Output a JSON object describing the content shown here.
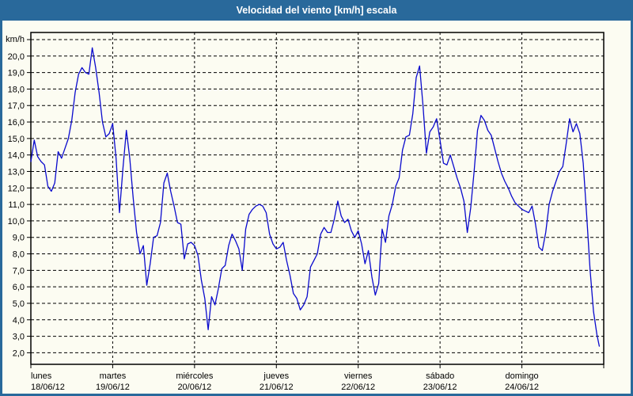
{
  "header": {
    "title": "Velocidad del viento [km/h] escala"
  },
  "colors": {
    "titlebar_bg": "#29699b",
    "titlebar_text": "#ffffff",
    "chart_bg": "#fcfcf2",
    "line": "#0a0acd",
    "grid": "#000000",
    "frame": "#000000",
    "tick_text": "#000000"
  },
  "chart_data": {
    "type": "line",
    "title": "Velocidad del viento [km/h] escala",
    "ylabel": "km/h",
    "y_unit_label": "km/h",
    "ylim": [
      2,
      21
    ],
    "y_tick_step": 1,
    "y_labeled_min": 2,
    "y_labeled_max": 20,
    "decimal_comma": true,
    "grid": "dashed",
    "legend_position": "none",
    "x_days": [
      {
        "name": "lunes",
        "date": "18/06/12"
      },
      {
        "name": "martes",
        "date": "19/06/12"
      },
      {
        "name": "miércoles",
        "date": "20/06/12"
      },
      {
        "name": "jueves",
        "date": "21/06/12"
      },
      {
        "name": "viernes",
        "date": "22/06/12"
      },
      {
        "name": "sábado",
        "date": "23/06/12"
      },
      {
        "name": "domingo",
        "date": "24/06/12"
      }
    ],
    "x_unit": "hours_since_monday_00",
    "series": [
      {
        "name": "Velocidad del viento [km/h]",
        "color": "#0a0acd",
        "points": [
          [
            0,
            13.6
          ],
          [
            1,
            14.9
          ],
          [
            2,
            13.9
          ],
          [
            3,
            13.6
          ],
          [
            4,
            13.4
          ],
          [
            5,
            12.1
          ],
          [
            6,
            11.8
          ],
          [
            7,
            12.3
          ],
          [
            8,
            14.2
          ],
          [
            9,
            13.8
          ],
          [
            10,
            14.4
          ],
          [
            11,
            15.0
          ],
          [
            12,
            16.1
          ],
          [
            13,
            17.8
          ],
          [
            14,
            18.9
          ],
          [
            15,
            19.3
          ],
          [
            16,
            19.0
          ],
          [
            17,
            18.9
          ],
          [
            18,
            20.5
          ],
          [
            19,
            19.3
          ],
          [
            20,
            17.8
          ],
          [
            21,
            16.0
          ],
          [
            22,
            15.1
          ],
          [
            23,
            15.3
          ],
          [
            24,
            15.9
          ],
          [
            25,
            13.8
          ],
          [
            26,
            10.5
          ],
          [
            27,
            13.2
          ],
          [
            28,
            15.5
          ],
          [
            29,
            13.8
          ],
          [
            30,
            11.4
          ],
          [
            31,
            9.3
          ],
          [
            32,
            8.0
          ],
          [
            33,
            8.5
          ],
          [
            34,
            6.1
          ],
          [
            35,
            7.4
          ],
          [
            36,
            9.0
          ],
          [
            37,
            9.1
          ],
          [
            38,
            9.9
          ],
          [
            39,
            12.3
          ],
          [
            40,
            12.9
          ],
          [
            41,
            11.8
          ],
          [
            42,
            10.9
          ],
          [
            43,
            9.9
          ],
          [
            44,
            9.8
          ],
          [
            45,
            7.7
          ],
          [
            46,
            8.6
          ],
          [
            47,
            8.7
          ],
          [
            48,
            8.5
          ],
          [
            49,
            7.9
          ],
          [
            50,
            6.4
          ],
          [
            51,
            5.3
          ],
          [
            52,
            3.4
          ],
          [
            53,
            5.4
          ],
          [
            54,
            4.9
          ],
          [
            55,
            5.9
          ],
          [
            56,
            7.1
          ],
          [
            57,
            7.3
          ],
          [
            58,
            8.5
          ],
          [
            59,
            9.2
          ],
          [
            60,
            8.8
          ],
          [
            61,
            8.3
          ],
          [
            62,
            7.0
          ],
          [
            63,
            9.5
          ],
          [
            64,
            10.4
          ],
          [
            65,
            10.7
          ],
          [
            66,
            10.9
          ],
          [
            67,
            11.0
          ],
          [
            68,
            10.9
          ],
          [
            69,
            10.5
          ],
          [
            70,
            9.2
          ],
          [
            71,
            8.6
          ],
          [
            72,
            8.3
          ],
          [
            73,
            8.4
          ],
          [
            74,
            8.7
          ],
          [
            75,
            7.6
          ],
          [
            76,
            6.7
          ],
          [
            77,
            5.6
          ],
          [
            78,
            5.3
          ],
          [
            79,
            4.6
          ],
          [
            80,
            4.9
          ],
          [
            81,
            5.4
          ],
          [
            82,
            7.2
          ],
          [
            83,
            7.6
          ],
          [
            84,
            8.0
          ],
          [
            85,
            9.2
          ],
          [
            86,
            9.6
          ],
          [
            87,
            9.3
          ],
          [
            88,
            9.3
          ],
          [
            89,
            10.1
          ],
          [
            90,
            11.2
          ],
          [
            91,
            10.3
          ],
          [
            92,
            9.9
          ],
          [
            93,
            10.1
          ],
          [
            94,
            9.4
          ],
          [
            95,
            9.0
          ],
          [
            96,
            9.4
          ],
          [
            97,
            8.6
          ],
          [
            98,
            7.4
          ],
          [
            99,
            8.2
          ],
          [
            100,
            6.6
          ],
          [
            101,
            5.5
          ],
          [
            102,
            6.2
          ],
          [
            103,
            9.5
          ],
          [
            104,
            8.7
          ],
          [
            105,
            10.3
          ],
          [
            106,
            11.0
          ],
          [
            107,
            12.1
          ],
          [
            108,
            12.6
          ],
          [
            109,
            14.3
          ],
          [
            110,
            15.1
          ],
          [
            111,
            15.2
          ],
          [
            112,
            16.5
          ],
          [
            113,
            18.7
          ],
          [
            114,
            19.4
          ],
          [
            115,
            17.0
          ],
          [
            116,
            14.1
          ],
          [
            117,
            15.4
          ],
          [
            118,
            15.7
          ],
          [
            119,
            16.2
          ],
          [
            120,
            14.9
          ],
          [
            121,
            13.5
          ],
          [
            122,
            13.4
          ],
          [
            123,
            14.0
          ],
          [
            124,
            13.3
          ],
          [
            125,
            12.6
          ],
          [
            126,
            12.0
          ],
          [
            127,
            11.2
          ],
          [
            128,
            9.3
          ],
          [
            129,
            10.8
          ],
          [
            130,
            13.0
          ],
          [
            131,
            15.5
          ],
          [
            132,
            16.4
          ],
          [
            133,
            16.1
          ],
          [
            134,
            15.5
          ],
          [
            135,
            15.2
          ],
          [
            136,
            14.4
          ],
          [
            137,
            13.6
          ],
          [
            138,
            12.9
          ],
          [
            139,
            12.4
          ],
          [
            140,
            12.0
          ],
          [
            141,
            11.5
          ],
          [
            142,
            11.1
          ],
          [
            143,
            10.9
          ],
          [
            144,
            10.7
          ],
          [
            145,
            10.6
          ],
          [
            146,
            10.5
          ],
          [
            147,
            10.9
          ],
          [
            148,
            9.8
          ],
          [
            149,
            8.4
          ],
          [
            150,
            8.2
          ],
          [
            151,
            9.3
          ],
          [
            152,
            11.0
          ],
          [
            153,
            11.8
          ],
          [
            154,
            12.4
          ],
          [
            155,
            13.0
          ],
          [
            156,
            13.3
          ],
          [
            157,
            14.7
          ],
          [
            158,
            16.2
          ],
          [
            159,
            15.4
          ],
          [
            160,
            15.9
          ],
          [
            161,
            15.3
          ],
          [
            162,
            13.5
          ],
          [
            163,
            10.3
          ],
          [
            164,
            7.0
          ],
          [
            165,
            4.5
          ],
          [
            166,
            3.1
          ],
          [
            166.7,
            2.4
          ]
        ]
      }
    ]
  }
}
